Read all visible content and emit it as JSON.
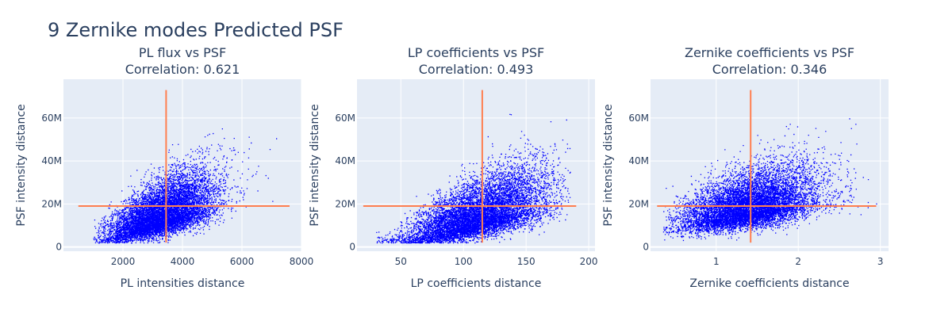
{
  "page": {
    "title": "9 Zernike modes Predicted PSF"
  },
  "style": {
    "plot_bg": "#e5ecf6",
    "grid": "#ffffff",
    "point_color": "#0000ff",
    "crosshair_color": "#ff7f50",
    "text_color": "#2a3f5f"
  },
  "chart_data": [
    {
      "type": "scatter",
      "title_line1": "PL flux vs PSF",
      "title_line2": "Correlation: 0.621",
      "xlabel": "PL intensities distance",
      "ylabel": "PSF intensity distance",
      "xlim": [
        0,
        8000
      ],
      "ylim": [
        -2000000,
        78000000
      ],
      "xticks": [
        2000,
        4000,
        6000,
        8000
      ],
      "xtick_labels": [
        "2000",
        "4000",
        "6000",
        "8000"
      ],
      "yticks": [
        0,
        20000000,
        40000000,
        60000000
      ],
      "ytick_labels": [
        "0",
        "20M",
        "40M",
        "60M"
      ],
      "grid": true,
      "point_cloud": {
        "x_min": 1000,
        "x_max": 7200,
        "x_mean": 3300,
        "x_sd": 900,
        "slope": 4400,
        "y_base": 2000000,
        "y_sd_base": 5000000,
        "y_sd_slope": 1800,
        "n": 9000
      },
      "crosshair": {
        "x": 3450,
        "y": 19000000,
        "x_range": [
          500,
          7600
        ],
        "y_range": [
          2000000,
          73000000
        ]
      }
    },
    {
      "type": "scatter",
      "title_line1": "LP coefficients vs PSF",
      "title_line2": "Correlation: 0.493",
      "xlabel": "LP coefficients distance",
      "ylabel": "PSF intensity distance",
      "xlim": [
        15,
        205
      ],
      "ylim": [
        -2000000,
        78000000
      ],
      "xticks": [
        50,
        100,
        150,
        200
      ],
      "xtick_labels": [
        "50",
        "100",
        "150",
        "200"
      ],
      "yticks": [
        0,
        20000000,
        40000000,
        60000000
      ],
      "ytick_labels": [
        "0",
        "20M",
        "40M",
        "60M"
      ],
      "grid": true,
      "point_cloud": {
        "x_min": 30,
        "x_max": 185,
        "x_mean": 112,
        "x_sd": 28,
        "slope": 160000,
        "y_base": -1500000,
        "y_sd_base": 4000000,
        "y_sd_slope": 70000,
        "n": 9000
      },
      "crosshair": {
        "x": 115,
        "y": 19000000,
        "x_range": [
          20,
          190
        ],
        "y_range": [
          2000000,
          73000000
        ]
      }
    },
    {
      "type": "scatter",
      "title_line1": "Zernike coefficients vs PSF",
      "title_line2": "Correlation: 0.346",
      "xlabel": "Zernike coefficients distance",
      "ylabel": "PSF intensity distance",
      "xlim": [
        0.2,
        3.1
      ],
      "ylim": [
        -2000000,
        78000000
      ],
      "xticks": [
        1,
        2,
        3
      ],
      "xtick_labels": [
        "1",
        "2",
        "3"
      ],
      "yticks": [
        0,
        20000000,
        40000000,
        60000000
      ],
      "ytick_labels": [
        "0",
        "20M",
        "40M",
        "60M"
      ],
      "grid": true,
      "point_cloud": {
        "x_min": 0.35,
        "x_max": 2.95,
        "x_mean": 1.4,
        "x_sd": 0.42,
        "slope": 7000000,
        "y_base": 8500000,
        "y_sd_base": 7000000,
        "y_sd_slope": 2500000,
        "n": 9000
      },
      "crosshair": {
        "x": 1.42,
        "y": 19000000,
        "x_range": [
          0.28,
          2.95
        ],
        "y_range": [
          2000000,
          73000000
        ]
      }
    }
  ]
}
